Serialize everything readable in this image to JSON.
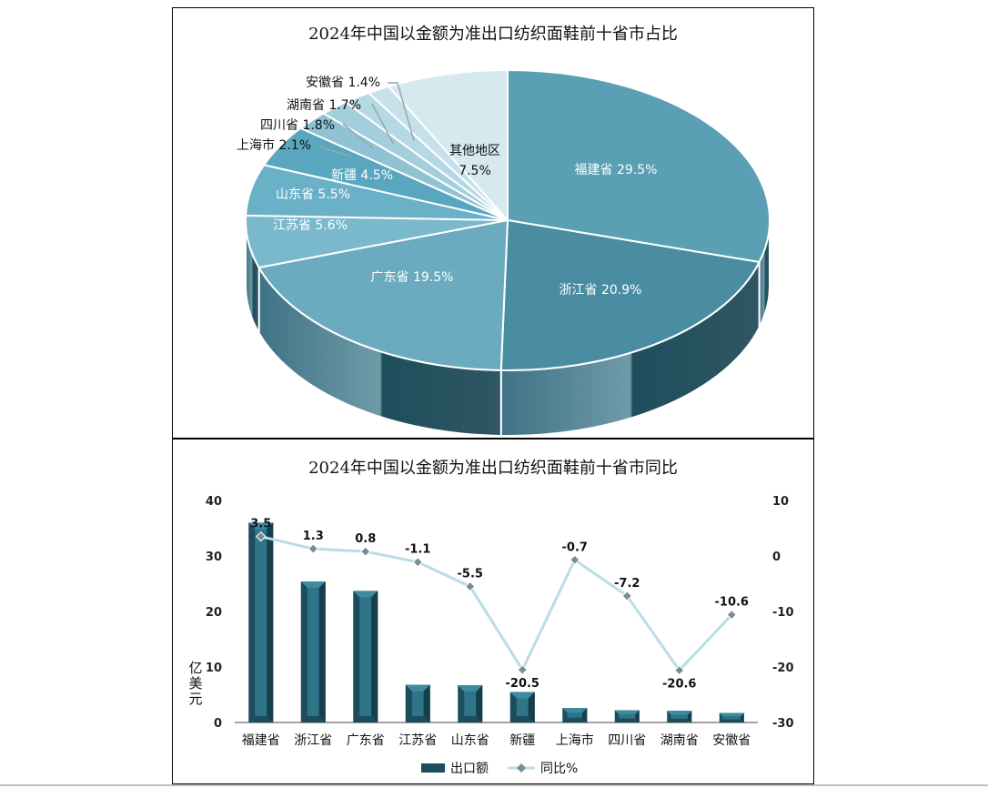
{
  "pie": {
    "title": "2024年中国以金额为准出口纺织面鞋前十省市占比",
    "slices": [
      {
        "name": "福建省",
        "percent": 29.5,
        "label": "福建省 29.5%",
        "color": "#5a9fb3"
      },
      {
        "name": "浙江省",
        "percent": 20.9,
        "label": "浙江省 20.9%",
        "color": "#4a8da3"
      },
      {
        "name": "广东省",
        "percent": 19.5,
        "label": "广东省 19.5%",
        "color": "#6aabbf"
      },
      {
        "name": "江苏省",
        "percent": 5.6,
        "label": "江苏省 5.6%",
        "color": "#79b9cb"
      },
      {
        "name": "山东省",
        "percent": 5.5,
        "label": "山东省 5.5%",
        "color": "#6ab1c7"
      },
      {
        "name": "新疆",
        "percent": 4.5,
        "label": "新疆 4.5%",
        "color": "#58a6bf"
      },
      {
        "name": "上海市",
        "percent": 2.1,
        "label": "上海市 2.1%",
        "color": "#8fc3d3"
      },
      {
        "name": "四川省",
        "percent": 1.8,
        "label": "四川省 1.8%",
        "color": "#a3cfdc"
      },
      {
        "name": "湖南省",
        "percent": 1.7,
        "label": "湖南省 1.7%",
        "color": "#b5d9e3"
      },
      {
        "name": "安徽省",
        "percent": 1.4,
        "label": "安徽省 1.4%",
        "color": "#c6e1e9"
      },
      {
        "name": "其他地区",
        "percent": 7.5,
        "label_line1": "其他地区",
        "label_line2": "7.5%",
        "color": "#d6e9ef"
      }
    ]
  },
  "chart_data": {
    "type": "bar",
    "title": "2024年中国以金额为准出口纺织面鞋前十省市同比",
    "categories": [
      "福建省",
      "浙江省",
      "广东省",
      "江苏省",
      "山东省",
      "新疆",
      "上海市",
      "四川省",
      "湖南省",
      "安徽省"
    ],
    "series": [
      {
        "name": "出口额",
        "type": "bar",
        "axis": "left",
        "values": [
          36,
          25.4,
          23.7,
          6.8,
          6.7,
          5.5,
          2.6,
          2.2,
          2.1,
          1.7
        ]
      },
      {
        "name": "同比%",
        "type": "line",
        "axis": "right",
        "values": [
          3.5,
          1.3,
          0.8,
          -1.1,
          -5.5,
          -20.5,
          -0.7,
          -7.2,
          -20.6,
          -10.6
        ]
      }
    ],
    "left_axis": {
      "label": "亿美元",
      "ylim": [
        0,
        40
      ],
      "ticks": [
        0,
        10,
        20,
        30,
        40
      ]
    },
    "right_axis": {
      "ylim": [
        -30,
        10
      ],
      "ticks": [
        10,
        0,
        -10,
        -20,
        -30
      ]
    },
    "line_labels": [
      "3.5",
      "1.3",
      "0.8",
      "-1.1",
      "-5.5",
      "-20.5",
      "-0.7",
      "-7.2",
      "-20.6",
      "-10.6"
    ],
    "legend": {
      "position": "bottom",
      "items": [
        "出口额",
        "同比%"
      ]
    },
    "colors": {
      "bar_dark": "#1c4d5d",
      "bar_mid": "#2f7489",
      "bar_light": "#3d8ba1",
      "line": "#b9dde6"
    }
  }
}
